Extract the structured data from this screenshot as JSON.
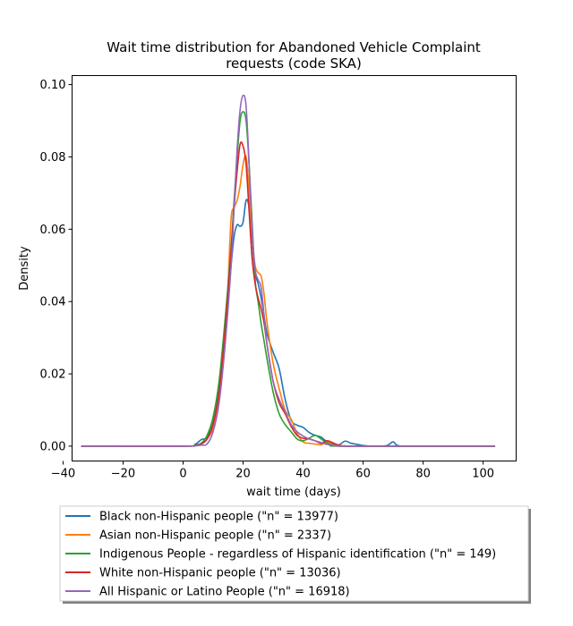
{
  "chart_data": {
    "type": "line",
    "title_line1": "Wait time distribution  for Abandoned Vehicle Complaint",
    "title_line2": "requests (code SKA)",
    "xlabel": "wait time (days)",
    "ylabel": "Density",
    "xlim": [
      -37,
      111
    ],
    "ylim": [
      -0.0041,
      0.1025
    ],
    "x_ticks": [
      -40,
      -20,
      0,
      20,
      40,
      60,
      80,
      100
    ],
    "x_tick_labels": [
      "−40",
      "−20",
      "0",
      "20",
      "40",
      "60",
      "80",
      "100"
    ],
    "y_ticks": [
      0.0,
      0.02,
      0.04,
      0.06,
      0.08,
      0.1
    ],
    "y_tick_labels": [
      "0.00",
      "0.02",
      "0.04",
      "0.06",
      "0.08",
      "0.10"
    ],
    "grid": false,
    "legend_position": "below-chart",
    "series": [
      {
        "name": "Black non-Hispanic people (\"n\" = 13977)",
        "color": "#1f77b4",
        "points": [
          [
            -34,
            0
          ],
          [
            0,
            0
          ],
          [
            4,
            0.0005
          ],
          [
            6,
            0.0018
          ],
          [
            8,
            0.0025
          ],
          [
            10,
            0.0065
          ],
          [
            12,
            0.0155
          ],
          [
            14,
            0.031
          ],
          [
            16,
            0.05
          ],
          [
            17,
            0.058
          ],
          [
            18,
            0.0612
          ],
          [
            19,
            0.0608
          ],
          [
            20,
            0.062
          ],
          [
            21,
            0.068
          ],
          [
            22,
            0.066
          ],
          [
            23,
            0.057
          ],
          [
            24,
            0.048
          ],
          [
            25,
            0.045
          ],
          [
            26,
            0.041
          ],
          [
            27,
            0.036
          ],
          [
            28,
            0.031
          ],
          [
            30,
            0.026
          ],
          [
            32,
            0.0215
          ],
          [
            34,
            0.013
          ],
          [
            36,
            0.0072
          ],
          [
            38,
            0.0058
          ],
          [
            40,
            0.0052
          ],
          [
            42,
            0.0038
          ],
          [
            44,
            0.003
          ],
          [
            46,
            0.0025
          ],
          [
            48,
            0.0012
          ],
          [
            50,
            0.0006
          ],
          [
            52,
            0.0004
          ],
          [
            54,
            0.0014
          ],
          [
            56,
            0.0008
          ],
          [
            58,
            0.0005
          ],
          [
            60,
            0.0002
          ],
          [
            64,
            0
          ],
          [
            68,
            0.0002
          ],
          [
            70,
            0.0012
          ],
          [
            72,
            0.0001
          ],
          [
            80,
            0
          ],
          [
            104,
            0
          ]
        ]
      },
      {
        "name": "Asian non-Hispanic people (\"n\" = 2337)",
        "color": "#ff7f0e",
        "points": [
          [
            -34,
            0
          ],
          [
            0,
            0
          ],
          [
            4,
            0.0002
          ],
          [
            6,
            0.0005
          ],
          [
            8,
            0.002
          ],
          [
            10,
            0.005
          ],
          [
            12,
            0.013
          ],
          [
            14,
            0.03
          ],
          [
            15,
            0.045
          ],
          [
            16,
            0.063
          ],
          [
            17,
            0.066
          ],
          [
            18,
            0.068
          ],
          [
            19,
            0.072
          ],
          [
            20,
            0.078
          ],
          [
            21,
            0.08
          ],
          [
            22,
            0.071
          ],
          [
            23,
            0.058
          ],
          [
            24,
            0.05
          ],
          [
            25,
            0.048
          ],
          [
            26,
            0.047
          ],
          [
            27,
            0.042
          ],
          [
            28,
            0.034
          ],
          [
            30,
            0.023
          ],
          [
            32,
            0.016
          ],
          [
            34,
            0.01
          ],
          [
            36,
            0.0075
          ],
          [
            38,
            0.0035
          ],
          [
            40,
            0.0012
          ],
          [
            42,
            0.0008
          ],
          [
            44,
            0.0006
          ],
          [
            46,
            0.0004
          ],
          [
            48,
            0.0013
          ],
          [
            50,
            0.0004
          ],
          [
            54,
            0.0001
          ],
          [
            60,
            0
          ],
          [
            104,
            0
          ]
        ]
      },
      {
        "name": "Indigenous People - regardless of Hispanic identification (\"n\" = 149)",
        "color": "#2ca02c",
        "points": [
          [
            -34,
            0
          ],
          [
            0,
            0
          ],
          [
            4,
            0.0003
          ],
          [
            6,
            0.0008
          ],
          [
            8,
            0.003
          ],
          [
            10,
            0.008
          ],
          [
            12,
            0.018
          ],
          [
            14,
            0.035
          ],
          [
            16,
            0.055
          ],
          [
            17,
            0.068
          ],
          [
            18,
            0.08
          ],
          [
            19,
            0.09
          ],
          [
            20,
            0.0925
          ],
          [
            21,
            0.09
          ],
          [
            22,
            0.078
          ],
          [
            23,
            0.062
          ],
          [
            24,
            0.046
          ],
          [
            25,
            0.04
          ],
          [
            26,
            0.034
          ],
          [
            27,
            0.029
          ],
          [
            28,
            0.024
          ],
          [
            30,
            0.015
          ],
          [
            32,
            0.009
          ],
          [
            34,
            0.006
          ],
          [
            36,
            0.004
          ],
          [
            38,
            0.002
          ],
          [
            40,
            0.0015
          ],
          [
            42,
            0.0022
          ],
          [
            44,
            0.003
          ],
          [
            46,
            0.002
          ],
          [
            48,
            0.0008
          ],
          [
            50,
            0.0003
          ],
          [
            54,
            0
          ],
          [
            104,
            0
          ]
        ]
      },
      {
        "name": "White non-Hispanic people (\"n\" = 13036)",
        "color": "#d62728",
        "points": [
          [
            -34,
            0
          ],
          [
            0,
            0
          ],
          [
            4,
            0.0002
          ],
          [
            6,
            0.0006
          ],
          [
            8,
            0.002
          ],
          [
            10,
            0.006
          ],
          [
            12,
            0.015
          ],
          [
            14,
            0.032
          ],
          [
            16,
            0.054
          ],
          [
            17,
            0.066
          ],
          [
            18,
            0.076
          ],
          [
            19,
            0.0835
          ],
          [
            20,
            0.083
          ],
          [
            21,
            0.078
          ],
          [
            22,
            0.065
          ],
          [
            23,
            0.052
          ],
          [
            24,
            0.045
          ],
          [
            25,
            0.041
          ],
          [
            26,
            0.038
          ],
          [
            27,
            0.034
          ],
          [
            28,
            0.028
          ],
          [
            30,
            0.018
          ],
          [
            32,
            0.012
          ],
          [
            34,
            0.009
          ],
          [
            36,
            0.0055
          ],
          [
            38,
            0.003
          ],
          [
            40,
            0.0022
          ],
          [
            42,
            0.002
          ],
          [
            44,
            0.0015
          ],
          [
            46,
            0.0008
          ],
          [
            48,
            0.0015
          ],
          [
            50,
            0.0009
          ],
          [
            52,
            0.0003
          ],
          [
            56,
            0
          ],
          [
            104,
            0
          ]
        ]
      },
      {
        "name": "All Hispanic or Latino People (\"n\" = 16918)",
        "color": "#9467bd",
        "points": [
          [
            -34,
            0
          ],
          [
            0,
            0
          ],
          [
            4,
            0.0001
          ],
          [
            6,
            0.0003
          ],
          [
            8,
            0.0006
          ],
          [
            10,
            0.004
          ],
          [
            12,
            0.012
          ],
          [
            14,
            0.028
          ],
          [
            16,
            0.05
          ],
          [
            17,
            0.066
          ],
          [
            18,
            0.082
          ],
          [
            19,
            0.093
          ],
          [
            20,
            0.097
          ],
          [
            21,
            0.094
          ],
          [
            22,
            0.078
          ],
          [
            23,
            0.06
          ],
          [
            24,
            0.049
          ],
          [
            25,
            0.046
          ],
          [
            26,
            0.044
          ],
          [
            27,
            0.036
          ],
          [
            28,
            0.028
          ],
          [
            30,
            0.018
          ],
          [
            32,
            0.013
          ],
          [
            34,
            0.0095
          ],
          [
            36,
            0.006
          ],
          [
            38,
            0.004
          ],
          [
            40,
            0.0028
          ],
          [
            42,
            0.002
          ],
          [
            44,
            0.0015
          ],
          [
            46,
            0.001
          ],
          [
            48,
            0.0005
          ],
          [
            52,
            0.0001
          ],
          [
            56,
            0
          ],
          [
            104,
            0
          ]
        ]
      }
    ]
  }
}
